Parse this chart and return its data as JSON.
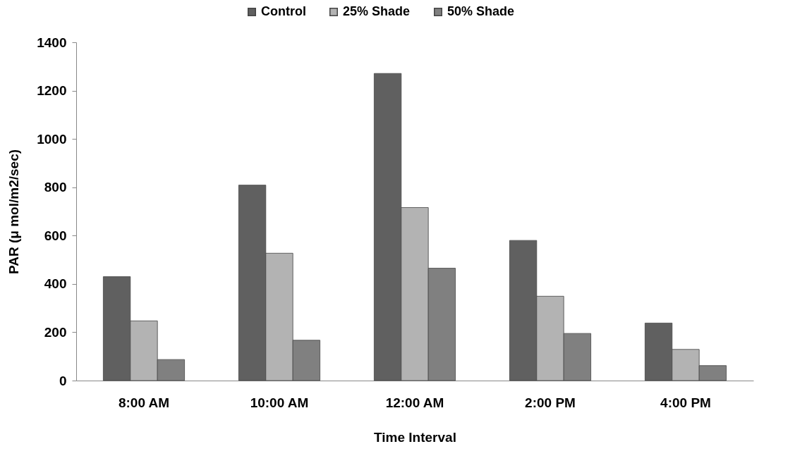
{
  "chart_data": {
    "type": "bar",
    "xlabel": "Time Interval",
    "ylabel": "PAR (μ mol/m2/sec)",
    "categories": [
      "8:00 AM",
      "10:00 AM",
      "12:00 AM",
      "2:00 PM",
      "4:00 PM"
    ],
    "series": [
      {
        "name": "Control",
        "color": "#606060",
        "values": [
          430,
          809,
          1271,
          580,
          238
        ]
      },
      {
        "name": "25% Shade",
        "color": "#b3b3b3",
        "values": [
          247,
          527,
          716,
          349,
          129
        ]
      },
      {
        "name": "50% Shade",
        "color": "#808080",
        "values": [
          87,
          167,
          465,
          195,
          62
        ]
      }
    ],
    "ylim": [
      0,
      1400
    ],
    "yticks": [
      0,
      200,
      400,
      600,
      800,
      1000,
      1200,
      1400
    ],
    "grid": false,
    "legend": "top"
  }
}
